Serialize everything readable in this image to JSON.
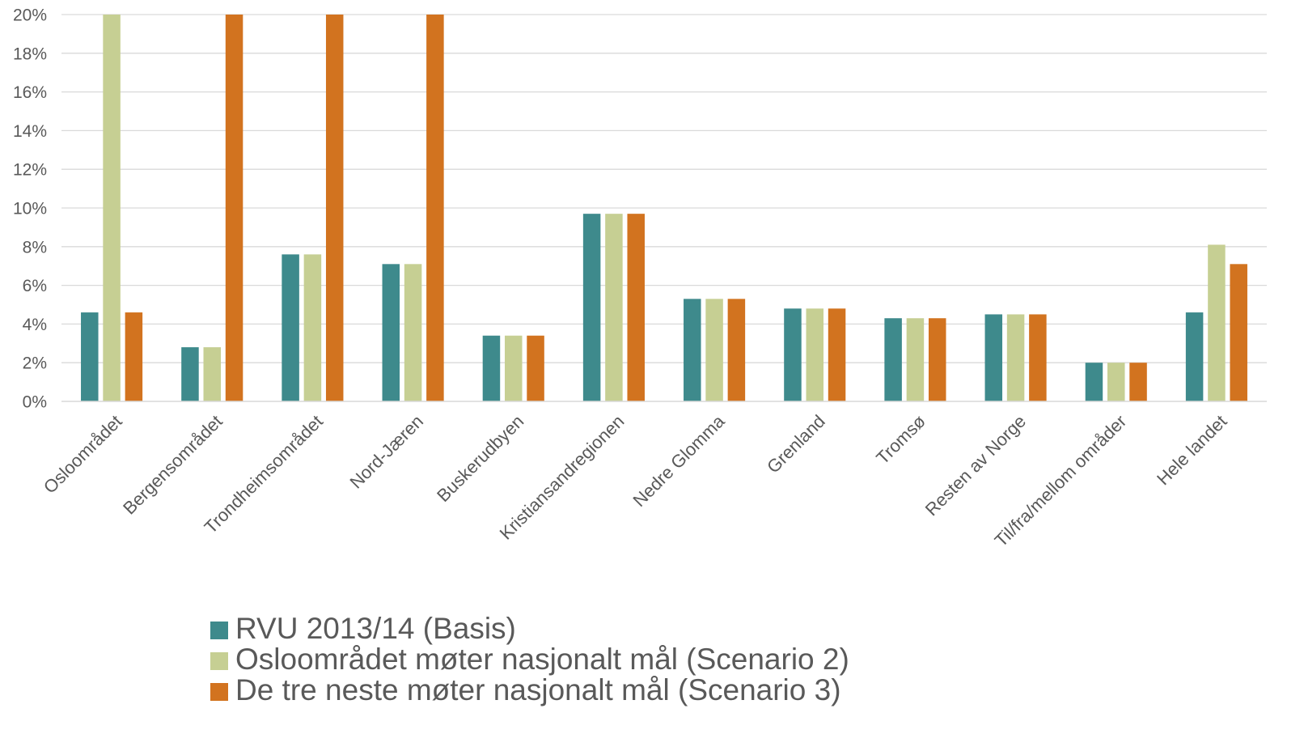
{
  "chart_data": {
    "type": "bar",
    "title": "",
    "xlabel": "",
    "ylabel": "",
    "ylim": [
      0,
      0.2
    ],
    "yticks": [
      0,
      0.02,
      0.04,
      0.06,
      0.08,
      0.1,
      0.12,
      0.14,
      0.16,
      0.18,
      0.2
    ],
    "ytick_labels": [
      "0%",
      "2%",
      "4%",
      "6%",
      "8%",
      "10%",
      "12%",
      "14%",
      "16%",
      "18%",
      "20%"
    ],
    "grid": true,
    "legend_position": "bottom",
    "categories": [
      "Osloområdet",
      "Bergensområdet",
      "Trondheimsområdet",
      "Nord-Jæren",
      "Buskerudbyen",
      "Kristiansandregionen",
      "Nedre Glomma",
      "Grenland",
      "Tromsø",
      "Resten av Norge",
      "Til/fra/mellom områder",
      "Hele landet"
    ],
    "series": [
      {
        "name": "RVU 2013/14 (Basis)",
        "color": "#3e8a8c",
        "values": [
          0.046,
          0.028,
          0.076,
          0.071,
          0.034,
          0.097,
          0.053,
          0.048,
          0.043,
          0.045,
          0.02,
          0.046
        ]
      },
      {
        "name": "Osloområdet møter nasjonalt mål (Scenario 2)",
        "color": "#c6cf93",
        "values": [
          0.2,
          0.028,
          0.076,
          0.071,
          0.034,
          0.097,
          0.053,
          0.048,
          0.043,
          0.045,
          0.02,
          0.081
        ]
      },
      {
        "name": "De tre neste møter nasjonalt mål (Scenario 3)",
        "color": "#d2731f",
        "values": [
          0.046,
          0.2,
          0.2,
          0.2,
          0.034,
          0.097,
          0.053,
          0.048,
          0.043,
          0.045,
          0.02,
          0.071
        ]
      }
    ]
  }
}
